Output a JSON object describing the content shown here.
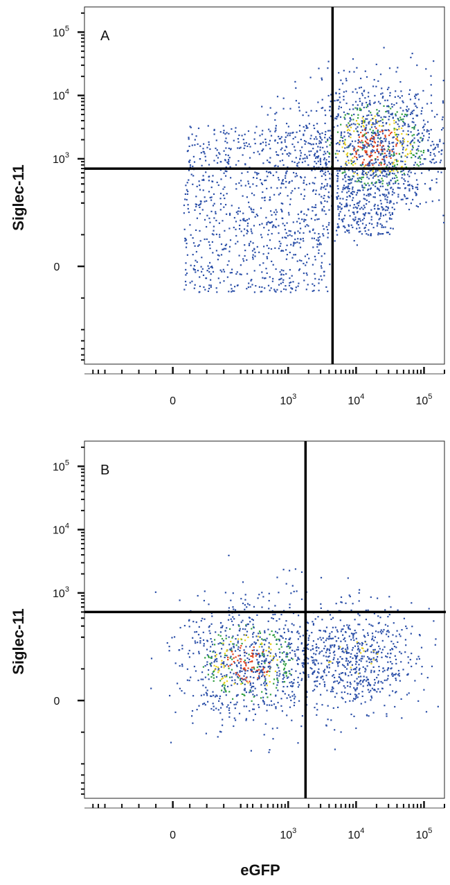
{
  "chart_data": [
    {
      "type": "scatter",
      "panel_label": "A",
      "xlabel": "",
      "ylabel": "Siglec-11",
      "x_scale": "biexponential",
      "y_scale": "biexponential",
      "xlim": [
        -400,
        200000
      ],
      "ylim": [
        -700,
        250000
      ],
      "x_ticks": [
        {
          "base": "0",
          "exp": ""
        },
        {
          "base": "10",
          "exp": "3"
        },
        {
          "base": "10",
          "exp": "4"
        },
        {
          "base": "10",
          "exp": "5"
        }
      ],
      "y_ticks": [
        {
          "base": "0",
          "exp": ""
        },
        {
          "base": "10",
          "exp": "3"
        },
        {
          "base": "10",
          "exp": "4"
        },
        {
          "base": "10",
          "exp": "5"
        }
      ],
      "quadrant_gate": {
        "x": 4500,
        "y": 700
      },
      "colors": {
        "low": "#2b4fa8",
        "mid": "#2f9e3f",
        "high": "#e8d21f",
        "peak": "#e0411a"
      },
      "populations": [
        {
          "x_range": [
            30,
            4000
          ],
          "y_range": [
            -80,
            3500
          ],
          "count": 900
        },
        {
          "x_center": 18000,
          "y_center": 1600,
          "spread": 0.55,
          "count": 1300,
          "dense": true
        },
        {
          "x_range": [
            5000,
            35000
          ],
          "y_range": [
            100,
            700
          ],
          "count": 250
        }
      ]
    },
    {
      "type": "scatter",
      "panel_label": "B",
      "xlabel": "eGFP",
      "ylabel": "Siglec-11",
      "x_scale": "biexponential",
      "y_scale": "biexponential",
      "xlim": [
        -400,
        200000
      ],
      "ylim": [
        -700,
        250000
      ],
      "x_ticks": [
        {
          "base": "0",
          "exp": ""
        },
        {
          "base": "10",
          "exp": "3"
        },
        {
          "base": "10",
          "exp": "4"
        },
        {
          "base": "10",
          "exp": "5"
        }
      ],
      "y_ticks": [
        {
          "base": "0",
          "exp": ""
        },
        {
          "base": "10",
          "exp": "3"
        },
        {
          "base": "10",
          "exp": "4"
        },
        {
          "base": "10",
          "exp": "5"
        }
      ],
      "quadrant_gate": {
        "x": 1800,
        "y": 500
      },
      "colors": {
        "low": "#2b4fa8",
        "mid": "#2f9e3f",
        "high": "#e8d21f",
        "peak": "#e0411a"
      },
      "populations": [
        {
          "x_center": 250,
          "y_center": 120,
          "spread": 0.5,
          "count": 900,
          "dense": true
        },
        {
          "x_center": 9000,
          "y_center": 130,
          "spread": 0.45,
          "count": 650,
          "dense": false
        },
        {
          "x_range": [
            200,
            15000
          ],
          "y_range": [
            500,
            2500
          ],
          "count": 25
        }
      ]
    }
  ]
}
